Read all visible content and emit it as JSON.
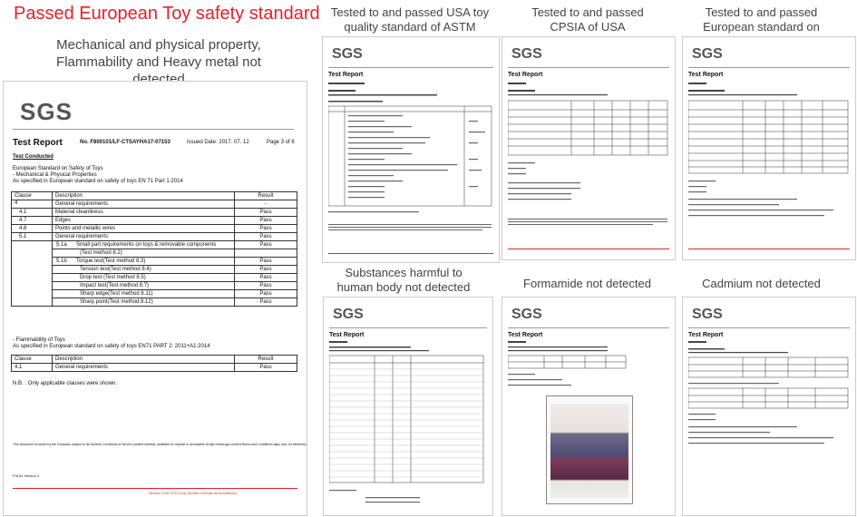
{
  "headline": "Passed European Toy safety standard",
  "subline": "Mechanical and physical property, Flammability and Heavy metal not detected",
  "captions": {
    "astm": "Tested to and passed USA toy quality standard of ASTM",
    "cpsia": "Tested to and passed CPSIA of USA",
    "phthalate": "Tested to and passed European standard on phthalate",
    "harmful": "Substances harmful to human body not detected",
    "formamide": "Formamide not detected",
    "cadmium": "Cadmium not detected"
  },
  "main_doc": {
    "logo": "SGS",
    "title": "Test Report",
    "report_no": "No. F800101/LF-CTSAYHA17-07153",
    "issued": "Issued Date: 2017. 07. 12",
    "page": "Page 3 of 6",
    "section": "Test Conducted",
    "std_line1": "European Standard on Safety of Toys",
    "std_line2": "- Mechanical & Physical Properties",
    "std_line3": "As specified in European standard on safety of toys EN 71 Part 1:2014",
    "col_clause": "Clause",
    "col_desc": "Description",
    "col_result": "Result",
    "rows": [
      {
        "c": "4",
        "d": "General requirements",
        "r": "-"
      },
      {
        "c": "4.1",
        "d": "Material cleanliness",
        "r": "Pass"
      },
      {
        "c": "4.7",
        "d": "Edges",
        "r": "Pass"
      },
      {
        "c": "4.8",
        "d": "Points and metallic wires",
        "r": "Pass"
      },
      {
        "c": "5.1",
        "d": "General requirements",
        "r": "Pass"
      },
      {
        "c": "5.1a",
        "d": "Small part requirements on toys & removable components",
        "r": "Pass"
      },
      {
        "c": "",
        "d": "(Test method 8.2)",
        "r": ""
      },
      {
        "c": "5.1b",
        "d": "Torque test(Test method 8.3)",
        "r": "Pass"
      },
      {
        "c": "",
        "d": "Tension test(Test method 8.4)",
        "r": "Pass"
      },
      {
        "c": "",
        "d": "Drop test (Test method 8.5)",
        "r": "Pass"
      },
      {
        "c": "",
        "d": "Impact test(Test method 8.7)",
        "r": "Pass"
      },
      {
        "c": "",
        "d": "Sharp edge(Test method 8.11)",
        "r": "Pass"
      },
      {
        "c": "",
        "d": "Sharp point(Test method 8.12)",
        "r": "Pass"
      }
    ],
    "flam_line1": "- Flammability of Toys",
    "flam_line2": "As specified in European standard on safety of toys EN71 PART 2: 2011+A1:2014",
    "flam_row": {
      "c": "4.1",
      "d": "General requirements",
      "r": "Pass"
    },
    "note": "N.B. : Only applicable clauses were shown.",
    "disclaimer": "This document is issued by the Company subject to its General Conditions of Service printed overleaf, available on request or accessible at http://www.sgs.com/en/Terms-and-Conditions.aspx and, for electronic format documents, subject to Terms and Conditions for Electronic Documents at http://www.sgs.com/en/Terms-and-Conditions/Terms-e-Document.aspx. Attention is drawn to the limitation of liability, indemnification and jurisdiction issues defined therein. Any holder of this document is advised that information contained hereon reflects the Company's findings at the time of its intervention only and within the limits of Client's instructions, if any. The Company's sole responsibility is to its Client and this document does not exonerate parties to a transaction from exercising all their rights and obligations under the transaction documents. This document cannot be reproduced except in full, without prior written approval of the Company. Any unauthorized alteration, forgery or falsification of the content or appearance of this document is unlawful and offenders may be prosecuted to the fullest extent of the law. Unless otherwise stated the results shown in this test report refer only to the sample(s).",
    "form_no": "F3104 Version 2",
    "footer_member": "Member of the SGS Group (Société Générale de Surveillance)"
  }
}
